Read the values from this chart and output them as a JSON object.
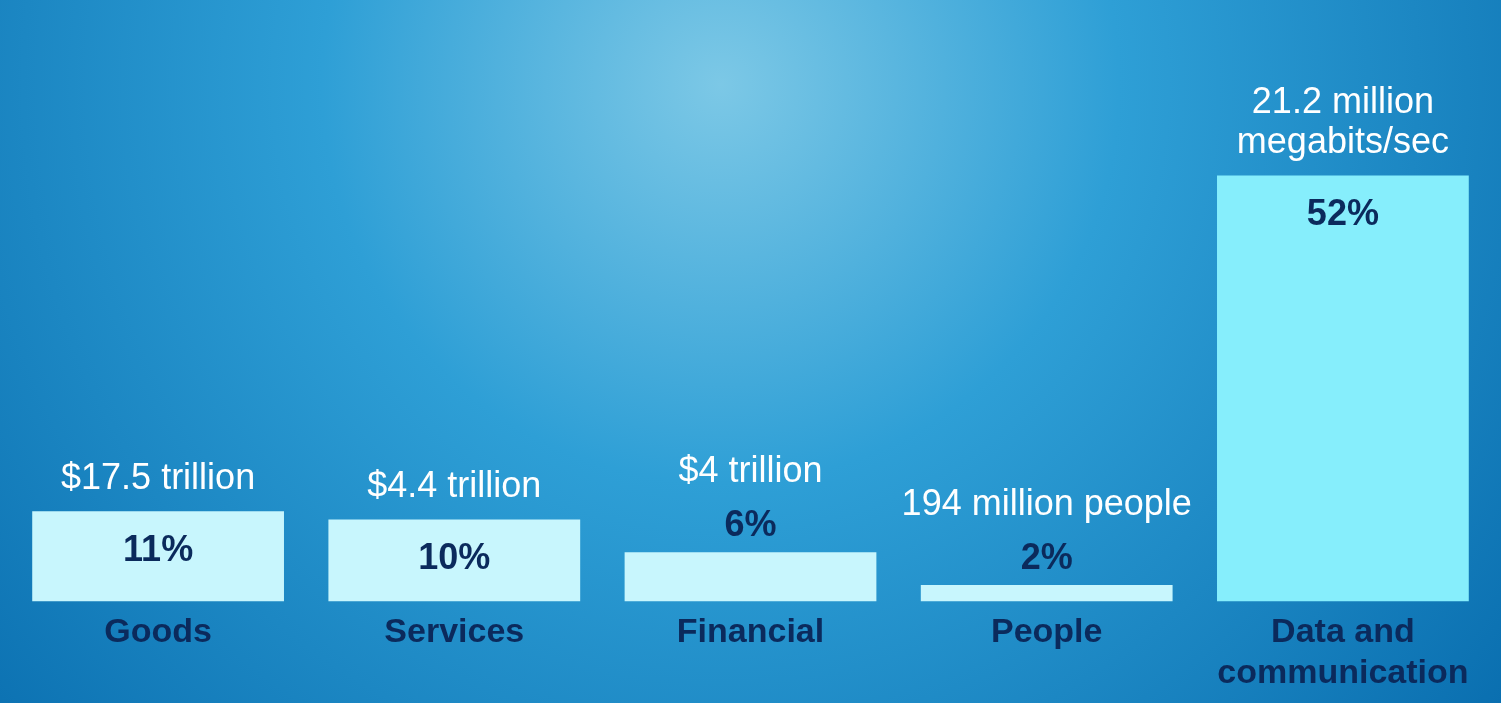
{
  "chart_data": {
    "type": "bar",
    "categories": [
      "Goods",
      "Services",
      "Financial",
      "People",
      "Data and communication"
    ],
    "values": [
      11,
      10,
      6,
      2,
      52
    ],
    "colors": [
      "#c8f6fd",
      "#c8f6fd",
      "#c8f6fd",
      "#c8f6fd",
      "#86eefc"
    ],
    "value_labels": [
      "11%",
      "10%",
      "6%",
      "2%",
      "52%"
    ],
    "annotations": [
      {
        "text": "$17.5 trillion",
        "x": "Goods",
        "y": 11
      },
      {
        "text": "$4.4 trillion",
        "x": "Services",
        "y": 10
      },
      {
        "text": "$4 trillion",
        "x": "Financial",
        "y": 6
      },
      {
        "text": "194 million people",
        "x": "People",
        "y": 2
      },
      {
        "text": "21.2 million megabits/sec",
        "x": "Data and communication",
        "y": 52
      }
    ]
  }
}
